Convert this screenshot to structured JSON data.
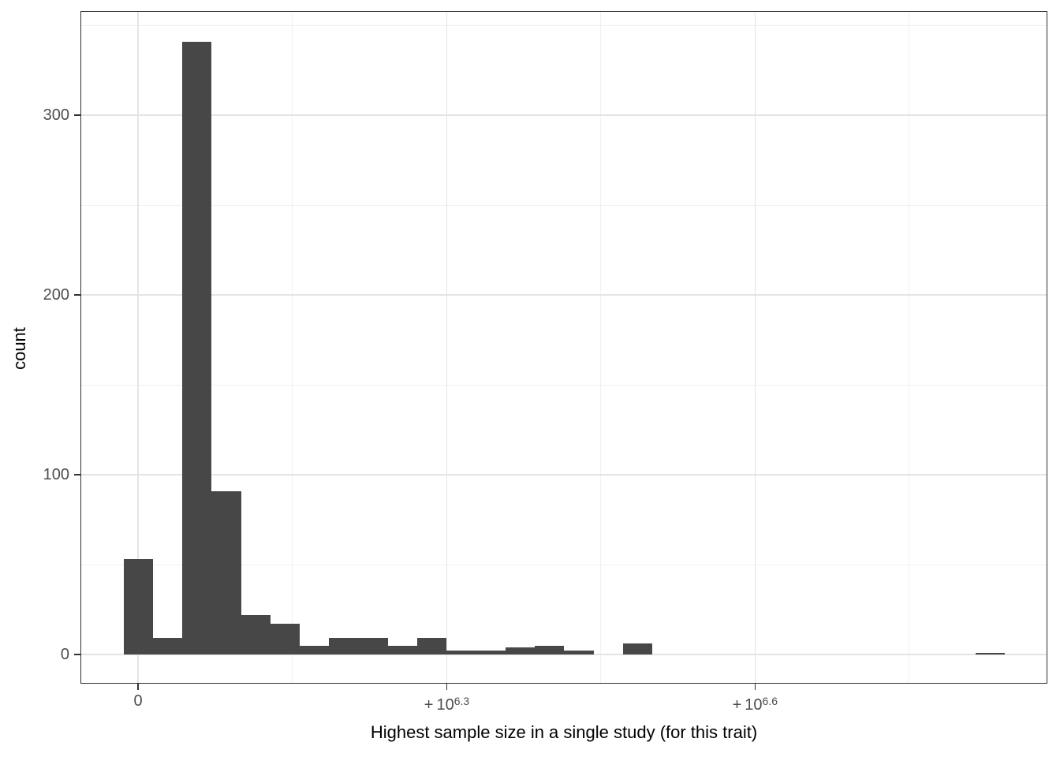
{
  "chart_data": {
    "type": "histogram",
    "title": "",
    "xlabel": "Highest sample size in a single study (for this trait)",
    "ylabel": "count",
    "bar_color": "#474747",
    "background_color": "#ffffff",
    "axis_text_color": "#4d4d4d",
    "axis_title_color": "#000000",
    "grid": true,
    "n_bins": 30,
    "bin_counts": [
      53,
      9,
      341,
      91,
      22,
      17,
      5,
      9,
      9,
      5,
      9,
      2,
      2,
      4,
      5,
      2,
      0,
      6,
      0,
      0,
      0,
      0,
      0,
      0,
      0,
      0,
      0,
      0,
      0,
      1
    ],
    "y_ticks": [
      0,
      100,
      200,
      300
    ],
    "y_minor_ticks": [
      50,
      150,
      250,
      350
    ],
    "ylim": [
      0,
      358
    ],
    "x_ticks": [
      {
        "main": "0",
        "sup": ""
      },
      {
        "main": "+ 10",
        "sup": "6.3"
      },
      {
        "main": "+ 10",
        "sup": "6.6"
      }
    ]
  }
}
